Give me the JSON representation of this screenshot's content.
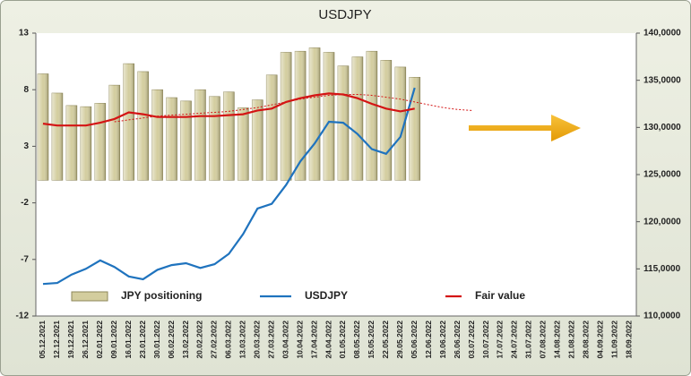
{
  "chart_data": {
    "type": "combo",
    "title": "USDJPY",
    "categories": [
      "05.12.2021",
      "12.12.2021",
      "19.12.2021",
      "26.12.2021",
      "02.01.2022",
      "09.01.2022",
      "16.01.2022",
      "23.01.2022",
      "30.01.2022",
      "06.02.2022",
      "13.02.2022",
      "20.02.2022",
      "27.02.2022",
      "06.03.2022",
      "13.03.2022",
      "20.03.2022",
      "27.03.2022",
      "03.04.2022",
      "10.04.2022",
      "17.04.2022",
      "24.04.2022",
      "01.05.2022",
      "08.05.2022",
      "15.05.2022",
      "22.05.2022",
      "29.05.2022",
      "05.06.2022",
      "12.06.2022",
      "19.06.2022",
      "26.06.2022",
      "03.07.2022",
      "10.07.2022",
      "17.07.2022",
      "24.07.2022",
      "31.07.2022",
      "07.08.2022",
      "14.08.2022",
      "21.08.2022",
      "28.08.2022",
      "04.09.2022",
      "11.09.2022",
      "18.09.2022"
    ],
    "series": [
      {
        "name": "JPY positioning",
        "type": "bar",
        "axis": "y",
        "color": "#d3cd9e",
        "values": [
          9.4,
          7.7,
          6.6,
          6.5,
          6.8,
          8.4,
          10.3,
          9.6,
          8.0,
          7.3,
          7.0,
          8.0,
          7.4,
          7.8,
          6.4,
          7.1,
          9.3,
          11.3,
          11.4,
          11.7,
          11.3,
          10.1,
          10.9,
          11.4,
          10.6,
          10.0,
          9.1,
          null,
          null,
          null,
          null,
          null,
          null,
          null,
          null,
          null,
          null,
          null,
          null,
          null,
          null,
          null
        ]
      },
      {
        "name": "USDJPY",
        "type": "line",
        "axis": "y2",
        "color": "#1f73be",
        "values": [
          113.4,
          113.5,
          114.4,
          115.0,
          115.9,
          115.2,
          114.2,
          113.9,
          114.9,
          115.4,
          115.6,
          115.1,
          115.5,
          116.6,
          118.7,
          121.4,
          121.9,
          123.9,
          126.4,
          128.3,
          130.6,
          130.5,
          129.3,
          127.7,
          127.2,
          129.0,
          134.2,
          null,
          null,
          null,
          null,
          null,
          null,
          null,
          null,
          null,
          null,
          null,
          null,
          null,
          null,
          null
        ]
      },
      {
        "name": "Fair value",
        "type": "line",
        "axis": "y2",
        "color": "#d41414",
        "values": [
          130.4,
          130.2,
          130.2,
          130.2,
          130.5,
          130.9,
          131.6,
          131.4,
          131.1,
          131.1,
          131.1,
          131.2,
          131.2,
          131.3,
          131.4,
          131.8,
          132.0,
          132.7,
          133.1,
          133.4,
          133.6,
          133.5,
          133.1,
          132.5,
          132.0,
          131.7,
          132.0,
          null,
          null,
          null,
          null,
          null,
          null,
          null,
          null,
          null,
          null,
          null,
          null,
          null,
          null,
          null
        ]
      },
      {
        "type": "line",
        "axis": "y2",
        "color": "#d41414",
        "dashed": true,
        "values": [
          null,
          null,
          null,
          null,
          null,
          130.6,
          130.8,
          131.0,
          131.2,
          131.3,
          131.4,
          131.5,
          131.6,
          131.7,
          131.9,
          132.1,
          132.4,
          132.7,
          133.0,
          133.2,
          133.4,
          133.5,
          133.5,
          133.4,
          133.2,
          133.0,
          132.7,
          132.4,
          132.1,
          131.9,
          131.8,
          null,
          null,
          null,
          null,
          null,
          null,
          null,
          null,
          null,
          null,
          null
        ]
      }
    ],
    "ylim": [
      -12,
      13
    ],
    "yticks": [
      -12,
      -7,
      -2,
      3,
      8,
      13
    ],
    "y2lim": [
      110,
      140
    ],
    "y2ticks": [
      {
        "value": 110,
        "label": "110,0000"
      },
      {
        "value": 115,
        "label": "115,0000"
      },
      {
        "value": 120,
        "label": "120,0000"
      },
      {
        "value": 125,
        "label": "125,0000"
      },
      {
        "value": 130,
        "label": "130,0000"
      },
      {
        "value": 135,
        "label": "135,0000"
      },
      {
        "value": 140,
        "label": "140,0000"
      }
    ],
    "legend": "bottom"
  }
}
